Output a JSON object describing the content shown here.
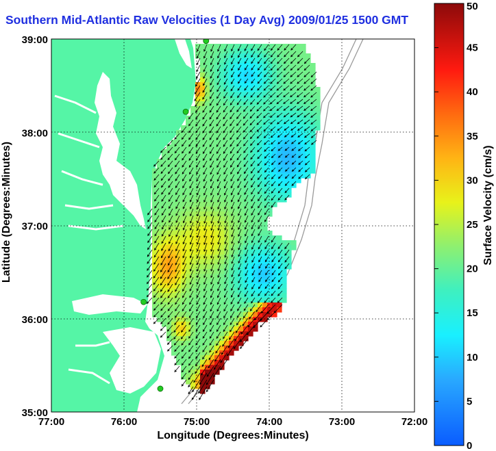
{
  "title": "Southern Mid-Atlantic Raw Velocities (1 Day Avg) 2009/01/25 1500 GMT",
  "xlabel": "Longitude (Degrees:Minutes)",
  "ylabel": "Latitude (Degrees:Minutes)",
  "x_ticks": [
    "77:00",
    "76:00",
    "75:00",
    "74:00",
    "73:00",
    "72:00"
  ],
  "y_ticks": [
    "39:00",
    "38:00",
    "37:00",
    "36:00",
    "35:00"
  ],
  "colorbar": {
    "label": "Surface Velocity (cm/s)",
    "ticks": [
      "0",
      "5",
      "10",
      "15",
      "20",
      "25",
      "30",
      "35",
      "40",
      "45",
      "50"
    ],
    "min": 0,
    "max": 50
  },
  "colors": {
    "land": "#55f5a6",
    "title": "#1f2fe0",
    "grid": "#000000",
    "station": "#22cc22"
  },
  "chart_data": {
    "type": "vector-field map",
    "xlim": [
      -77,
      -72
    ],
    "ylim": [
      35,
      39
    ],
    "stations": [
      {
        "lon": -74.87,
        "lat": 38.98
      },
      {
        "lon": -75.15,
        "lat": 38.22
      },
      {
        "lon": -75.73,
        "lat": 36.18
      },
      {
        "lon": -75.5,
        "lat": 35.25
      }
    ]
  }
}
